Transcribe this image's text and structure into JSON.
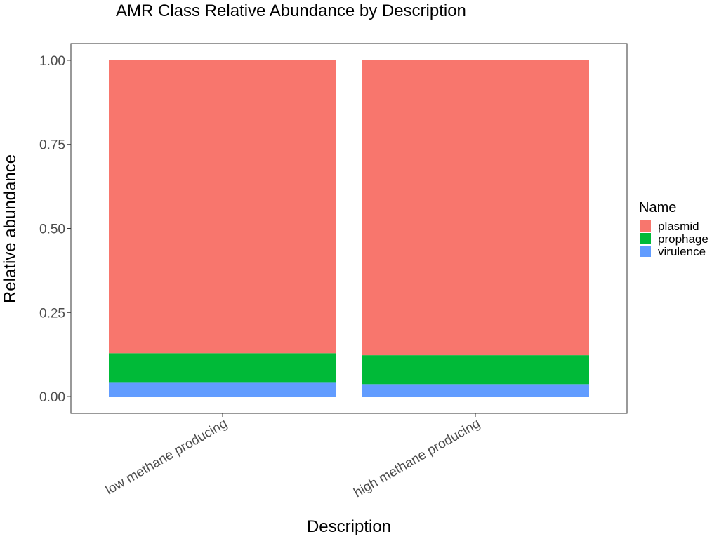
{
  "chart_data": {
    "type": "bar",
    "stacked": true,
    "title": "AMR Class Relative Abundance by Description",
    "xlabel": "Description",
    "ylabel": "Relative abundance",
    "categories": [
      "low methane producing",
      "high methane producing"
    ],
    "series": [
      {
        "name": "virulence",
        "color": "#619CFF",
        "values": [
          0.041,
          0.037
        ]
      },
      {
        "name": "prophage",
        "color": "#00BA38",
        "values": [
          0.088,
          0.086
        ]
      },
      {
        "name": "plasmid",
        "color": "#F8766D",
        "values": [
          0.871,
          0.877
        ]
      }
    ],
    "ylim": [
      -0.05,
      1.05
    ],
    "yticks": [
      0,
      0.25,
      0.5,
      0.75,
      1
    ],
    "ytick_labels": [
      "0.00",
      "0.25",
      "0.50",
      "0.75",
      "1.00"
    ],
    "grid": false,
    "legend": {
      "title": "Name",
      "position": "right",
      "entries": [
        "plasmid",
        "prophage",
        "virulence"
      ]
    }
  }
}
